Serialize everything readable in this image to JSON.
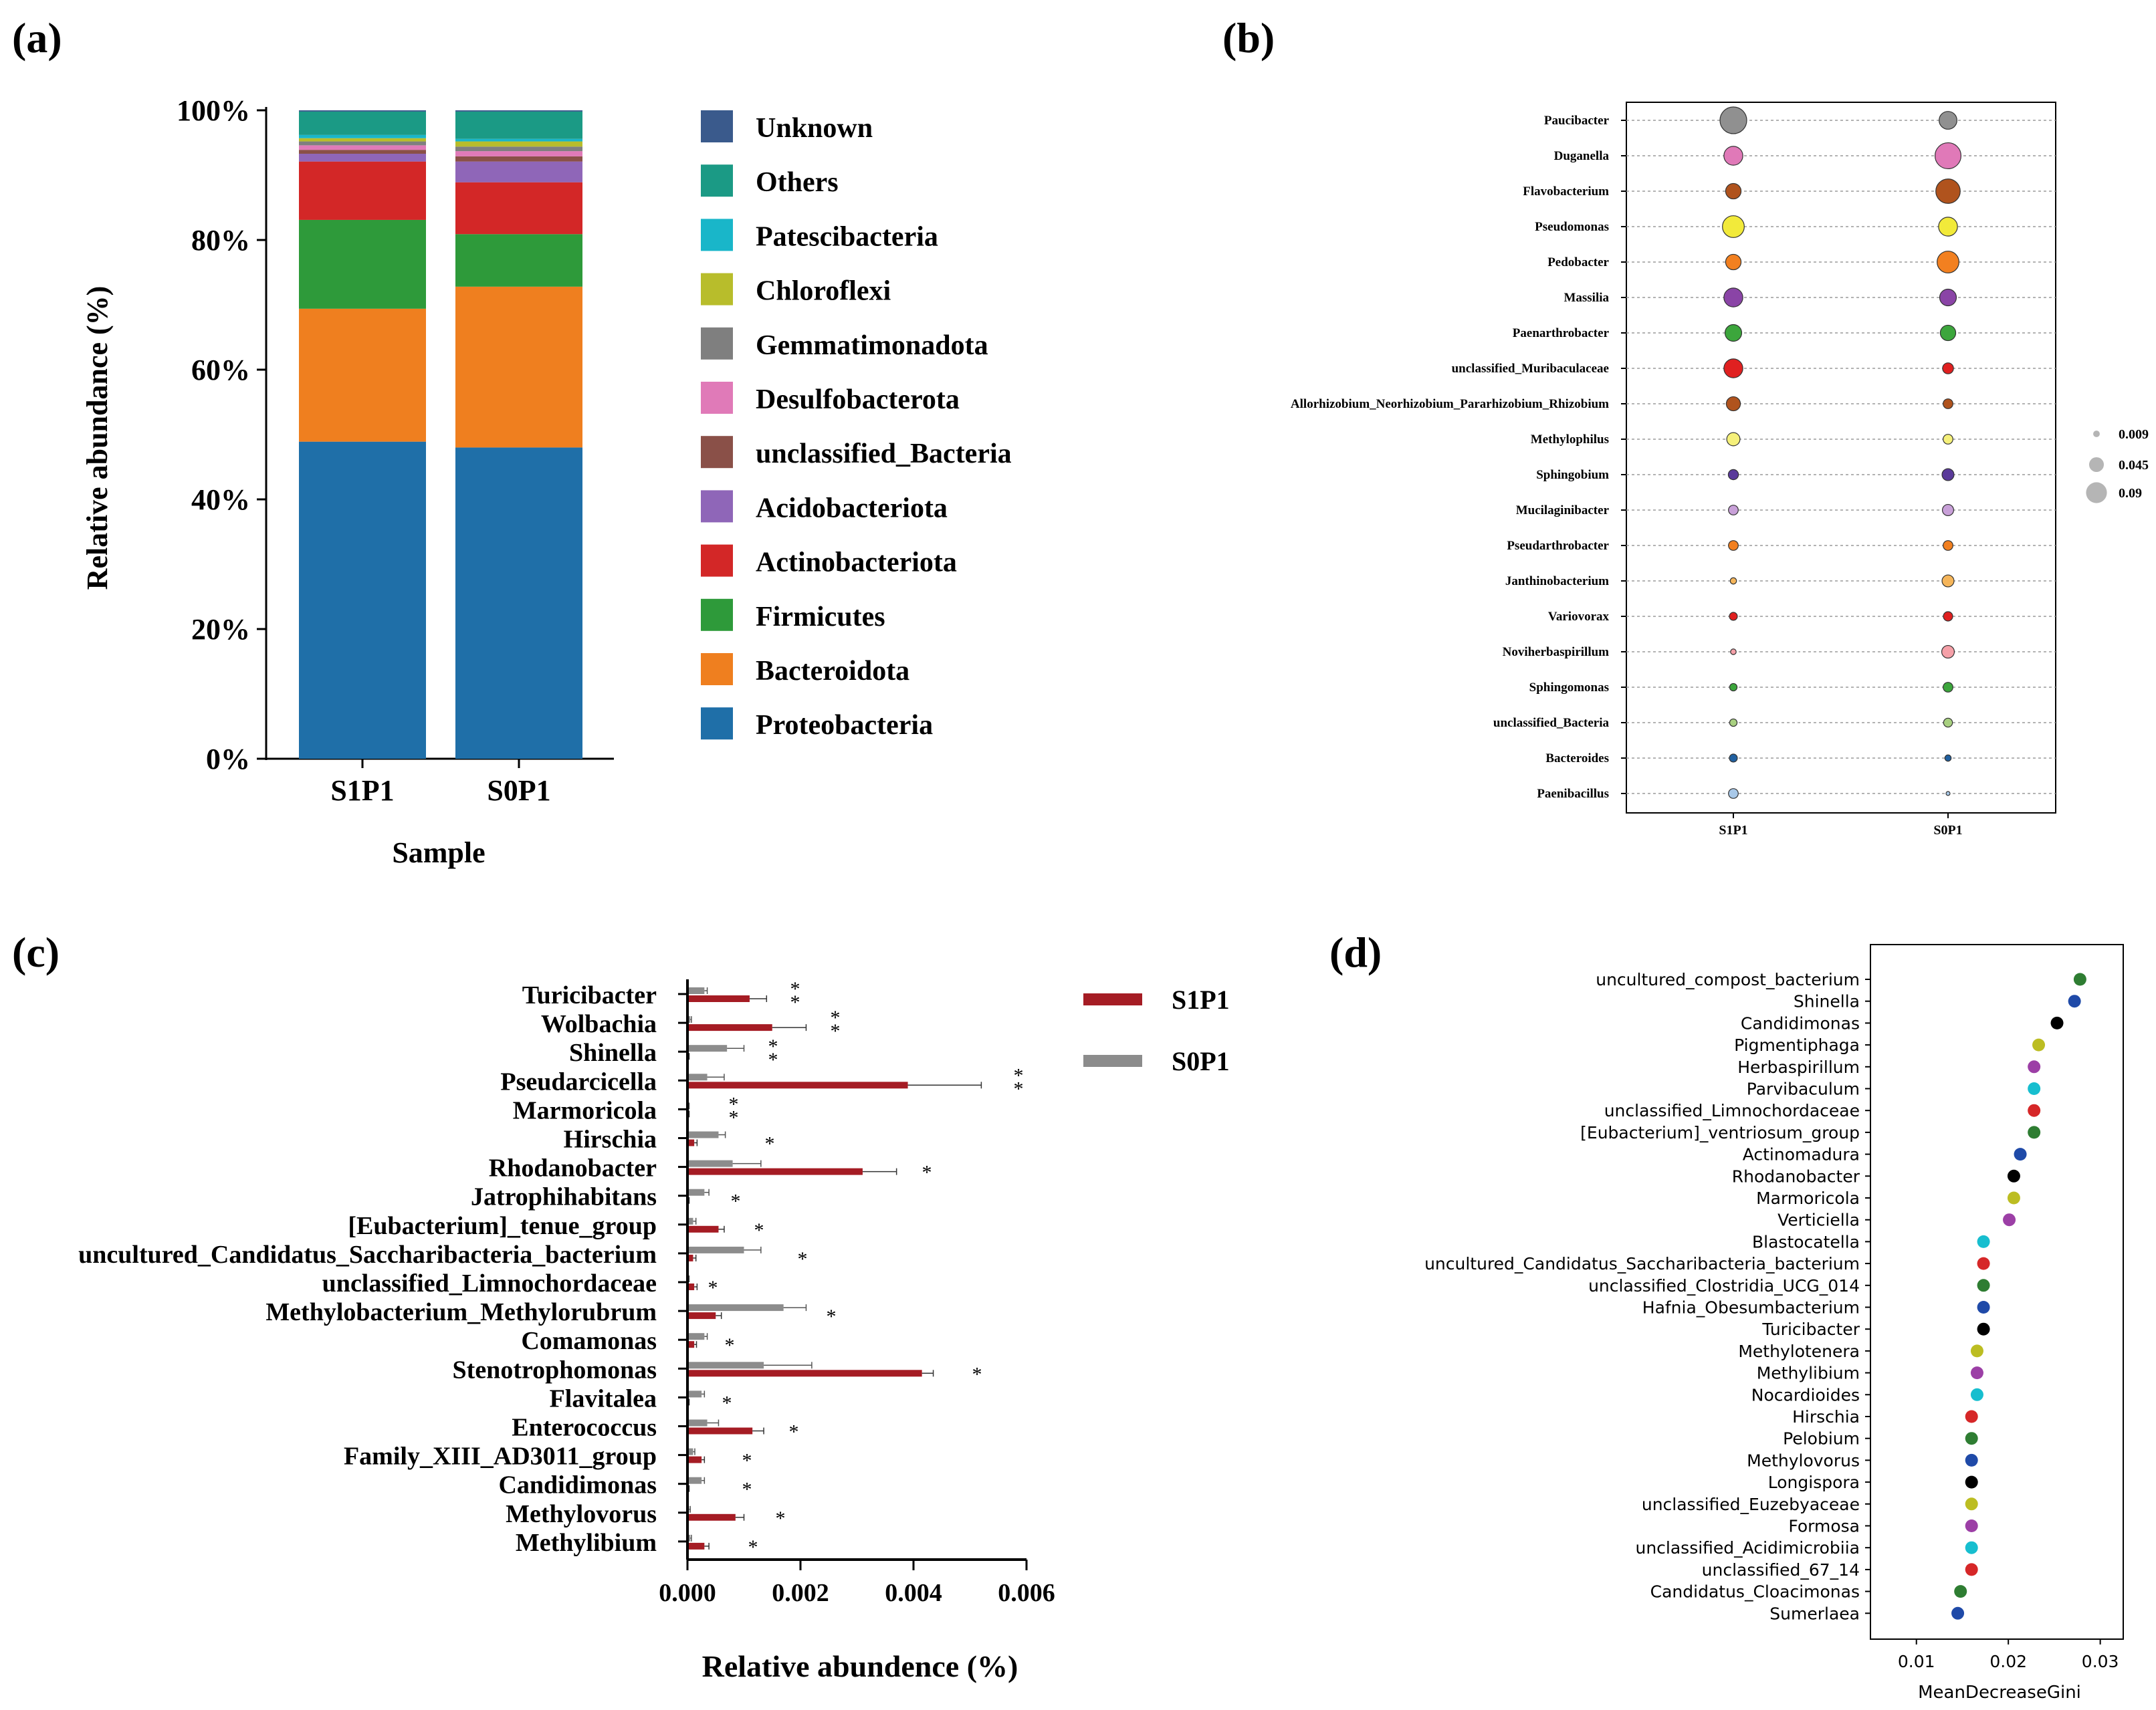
{
  "panels": {
    "a": "(a)",
    "b": "(b)",
    "c": "(c)",
    "d": "(d)"
  },
  "chart_data": [
    {
      "id": "a",
      "type": "bar",
      "stacked": true,
      "title": "",
      "xlabel": "Sample",
      "ylabel": "Relative abundance (%)",
      "ylim": [
        0,
        100
      ],
      "y_ticks": [
        "0%",
        "20%",
        "40%",
        "60%",
        "80%",
        "100%"
      ],
      "categories": [
        "S1P1",
        "S0P1"
      ],
      "series": [
        {
          "name": "Proteobacteria",
          "color": "#1f6fa8",
          "values": [
            48.9,
            48.0
          ]
        },
        {
          "name": "Bacteroidota",
          "color": "#ef7f1f",
          "values": [
            20.5,
            24.8
          ]
        },
        {
          "name": "Firmicutes",
          "color": "#2e9a3a",
          "values": [
            13.7,
            8.1
          ]
        },
        {
          "name": "Actinobacteriota",
          "color": "#d32727",
          "values": [
            9.0,
            8.0
          ]
        },
        {
          "name": "Acidobacteriota",
          "color": "#8f66b8",
          "values": [
            1.2,
            3.2
          ]
        },
        {
          "name": "unclassified_Bacteria",
          "color": "#8a5048",
          "values": [
            0.6,
            0.8
          ]
        },
        {
          "name": "Desulfobacterota",
          "color": "#e07ab8",
          "values": [
            0.7,
            0.8
          ]
        },
        {
          "name": "Gemmatimonadota",
          "color": "#7f7f7f",
          "values": [
            0.6,
            0.7
          ]
        },
        {
          "name": "Chloroflexi",
          "color": "#b8bd2b",
          "values": [
            0.5,
            0.8
          ]
        },
        {
          "name": "Patescibacteria",
          "color": "#19b6c9",
          "values": [
            0.5,
            0.4
          ]
        },
        {
          "name": "Others",
          "color": "#1b9a85",
          "values": [
            3.6,
            4.2
          ]
        },
        {
          "name": "Unknown",
          "color": "#3a5a8c",
          "values": [
            0.2,
            0.2
          ]
        }
      ],
      "legend_order": [
        "Unknown",
        "Others",
        "Patescibacteria",
        "Chloroflexi",
        "Gemmatimonadota",
        "Desulfobacterota",
        "unclassified_Bacteria",
        "Acidobacteriota",
        "Actinobacteriota",
        "Firmicutes",
        "Bacteroidota",
        "Proteobacteria"
      ]
    },
    {
      "id": "b",
      "type": "scatter",
      "subtype": "bubble",
      "categories": [
        "S1P1",
        "S0P1"
      ],
      "size_legend": [
        "0.009",
        "0.045",
        "0.09"
      ],
      "size_legend_values": [
        0.009,
        0.045,
        0.09
      ],
      "genera": [
        {
          "name": "Paucibacter",
          "color": "#909090",
          "values": [
            0.09,
            0.04
          ]
        },
        {
          "name": "Duganella",
          "color": "#e079b8",
          "values": [
            0.045,
            0.085
          ]
        },
        {
          "name": "Flavobacterium",
          "color": "#b0531d",
          "values": [
            0.03,
            0.075
          ]
        },
        {
          "name": "Pseudomonas",
          "color": "#f2ea3a",
          "values": [
            0.06,
            0.045
          ]
        },
        {
          "name": "Pedobacter",
          "color": "#f28020",
          "values": [
            0.03,
            0.06
          ]
        },
        {
          "name": "Massilia",
          "color": "#8a44a6",
          "values": [
            0.045,
            0.035
          ]
        },
        {
          "name": "Paenarthrobacter",
          "color": "#3ca63c",
          "values": [
            0.035,
            0.03
          ]
        },
        {
          "name": "unclassified_Muribaculaceae",
          "color": "#e02020",
          "values": [
            0.045,
            0.015
          ]
        },
        {
          "name": "Allorhizobium_Neorhizobium_Pararhizobium_Rhizobium",
          "color": "#b0531d",
          "values": [
            0.025,
            0.012
          ]
        },
        {
          "name": "Methylophilus",
          "color": "#f5f07a",
          "values": [
            0.022,
            0.012
          ]
        },
        {
          "name": "Sphingobium",
          "color": "#5a3a9a",
          "values": [
            0.013,
            0.018
          ]
        },
        {
          "name": "Mucilaginibacter",
          "color": "#c8a0d8",
          "values": [
            0.012,
            0.016
          ]
        },
        {
          "name": "Pseudarthrobacter",
          "color": "#f28020",
          "values": [
            0.012,
            0.012
          ]
        },
        {
          "name": "Janthinobacterium",
          "color": "#f5b55a",
          "values": [
            0.005,
            0.018
          ]
        },
        {
          "name": "Variovorax",
          "color": "#e02020",
          "values": [
            0.008,
            0.011
          ]
        },
        {
          "name": "Noviherbaspirillum",
          "color": "#f5a0a8",
          "values": [
            0.004,
            0.02
          ]
        },
        {
          "name": "Sphingomonas",
          "color": "#3ca63c",
          "values": [
            0.007,
            0.012
          ]
        },
        {
          "name": "unclassified_Bacteria",
          "color": "#a8d080",
          "values": [
            0.007,
            0.01
          ]
        },
        {
          "name": "Bacteroides",
          "color": "#2060a0",
          "values": [
            0.008,
            0.005
          ]
        },
        {
          "name": "Paenibacillus",
          "color": "#a8c8e8",
          "values": [
            0.012,
            0.002
          ]
        }
      ]
    },
    {
      "id": "c",
      "type": "bar",
      "orientation": "horizontal",
      "xlabel": "Relative abundence (%)",
      "xlim": [
        0,
        0.006
      ],
      "x_ticks": [
        "0.000",
        "0.002",
        "0.004",
        "0.006"
      ],
      "categories": [
        "Turicibacter",
        "Wolbachia",
        "Shinella",
        "Pseudarcicella",
        "Marmoricola",
        "Hirschia",
        "Rhodanobacter",
        "Jatrophihabitans",
        "[Eubacterium]_tenue_group",
        "uncultured_Candidatus_Saccharibacteria_bacterium",
        "unclassified_Limnochordaceae",
        "Methylobacterium_Methylorubrum",
        "Comamonas",
        "Stenotrophomonas",
        "Flavitalea",
        "Enterococcus",
        "Family_XIII_AD3011_group",
        "Candidimonas",
        "Methylovorus",
        "Methylibium"
      ],
      "significance": [
        "**",
        "**",
        "**",
        "**",
        "**",
        "*",
        "*",
        "*",
        "*",
        "*",
        "*",
        "*",
        "*",
        "*",
        "*",
        "*",
        "*",
        "*",
        "*",
        "*"
      ],
      "series": [
        {
          "name": "S0P1",
          "color": "#8c8c8c",
          "values": [
            0.0003,
            5e-05,
            0.0007,
            0.00035,
            2e-05,
            0.00055,
            0.0008,
            0.0003,
            0.0001,
            0.001,
            2e-05,
            0.0017,
            0.0003,
            0.00135,
            0.00025,
            0.00035,
            0.0001,
            0.00025,
            3e-05,
            5e-05
          ],
          "errors": [
            5e-05,
            2e-05,
            0.0003,
            0.0003,
            1e-05,
            0.00012,
            0.0005,
            8e-05,
            5e-05,
            0.0003,
            1e-05,
            0.0004,
            5e-05,
            0.00085,
            5e-05,
            0.0002,
            3e-05,
            5e-05,
            2e-05,
            2e-05
          ]
        },
        {
          "name": "S1P1",
          "color": "#a51c24",
          "values": [
            0.0011,
            0.0015,
            2e-05,
            0.0039,
            2e-05,
            0.00012,
            0.0031,
            2e-05,
            0.00055,
            0.0001,
            0.00012,
            0.0005,
            0.00012,
            0.00415,
            2e-05,
            0.00115,
            0.00025,
            2e-05,
            0.00085,
            0.0003
          ],
          "errors": [
            0.0003,
            0.0006,
            1e-05,
            0.0013,
            1e-05,
            5e-05,
            0.0006,
            1e-05,
            0.0001,
            5e-05,
            5e-05,
            0.0001,
            4e-05,
            0.0002,
            1e-05,
            0.0002,
            5e-05,
            1e-05,
            0.00015,
            8e-05
          ]
        }
      ]
    },
    {
      "id": "d",
      "type": "scatter",
      "xlabel": "MeanDecreaseGini",
      "xlim": [
        0.005,
        0.0325
      ],
      "x_ticks": [
        "0.01",
        "0.02",
        "0.03"
      ],
      "x_tick_values": [
        0.01,
        0.02,
        0.03
      ],
      "points": [
        {
          "name": "uncultured_compost_bacterium",
          "value": 0.0278,
          "color": "#2e7d32"
        },
        {
          "name": "Shinella",
          "value": 0.0272,
          "color": "#1f4aa8"
        },
        {
          "name": "Candidimonas",
          "value": 0.0253,
          "color": "#000000"
        },
        {
          "name": "Pigmentiphaga",
          "value": 0.0233,
          "color": "#bcbd22"
        },
        {
          "name": "Herbaspirillum",
          "value": 0.0228,
          "color": "#9c3fa6"
        },
        {
          "name": "Parvibaculum",
          "value": 0.0228,
          "color": "#17becf"
        },
        {
          "name": "unclassified_Limnochordaceae",
          "value": 0.0228,
          "color": "#d62728"
        },
        {
          "name": "[Eubacterium]_ventriosum_group",
          "value": 0.0228,
          "color": "#2e7d32"
        },
        {
          "name": "Actinomadura",
          "value": 0.0213,
          "color": "#1f4aa8"
        },
        {
          "name": "Rhodanobacter",
          "value": 0.0206,
          "color": "#000000"
        },
        {
          "name": "Marmoricola",
          "value": 0.0206,
          "color": "#bcbd22"
        },
        {
          "name": "Verticiella",
          "value": 0.0201,
          "color": "#9c3fa6"
        },
        {
          "name": "Blastocatella",
          "value": 0.0173,
          "color": "#17becf"
        },
        {
          "name": "uncultured_Candidatus_Saccharibacteria_bacterium",
          "value": 0.0173,
          "color": "#d62728"
        },
        {
          "name": "unclassified_Clostridia_UCG_014",
          "value": 0.0173,
          "color": "#2e7d32"
        },
        {
          "name": "Hafnia_Obesumbacterium",
          "value": 0.0173,
          "color": "#1f4aa8"
        },
        {
          "name": "Turicibacter",
          "value": 0.0173,
          "color": "#000000"
        },
        {
          "name": "Methylotenera",
          "value": 0.0166,
          "color": "#bcbd22"
        },
        {
          "name": "Methylibium",
          "value": 0.0166,
          "color": "#9c3fa6"
        },
        {
          "name": "Nocardioides",
          "value": 0.0166,
          "color": "#17becf"
        },
        {
          "name": "Hirschia",
          "value": 0.016,
          "color": "#d62728"
        },
        {
          "name": "Pelobium",
          "value": 0.016,
          "color": "#2e7d32"
        },
        {
          "name": "Methylovorus",
          "value": 0.016,
          "color": "#1f4aa8"
        },
        {
          "name": "Longispora",
          "value": 0.016,
          "color": "#000000"
        },
        {
          "name": "unclassified_Euzebyaceae",
          "value": 0.016,
          "color": "#bcbd22"
        },
        {
          "name": "Formosa",
          "value": 0.016,
          "color": "#9c3fa6"
        },
        {
          "name": "unclassified_Acidimicrobiia",
          "value": 0.016,
          "color": "#17becf"
        },
        {
          "name": "unclassified_67_14",
          "value": 0.016,
          "color": "#d62728"
        },
        {
          "name": "Candidatus_Cloacimonas",
          "value": 0.0148,
          "color": "#2e7d32"
        },
        {
          "name": "Sumerlaea",
          "value": 0.0145,
          "color": "#1f4aa8"
        }
      ]
    }
  ]
}
